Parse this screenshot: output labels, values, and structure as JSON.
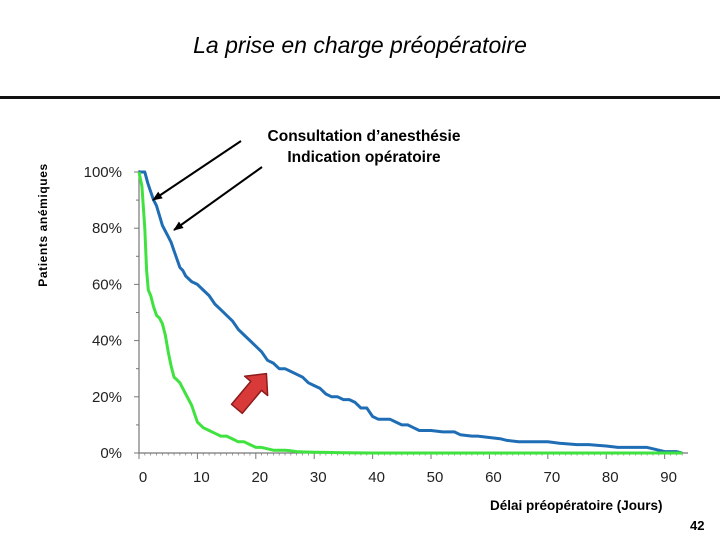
{
  "page": {
    "title": "La prise en charge préopératoire",
    "page_number": "42"
  },
  "colors": {
    "series_blue": "#1f6eb5",
    "series_green": "#3fe23f",
    "arrow_red": "#d83a3a",
    "arrow_red_edge": "#8e1b1b",
    "axis": "#777777"
  },
  "chart_data": {
    "type": "line",
    "title": "",
    "xlabel": "Délai préopératoire (Jours)",
    "ylabel": "Patients anémiques",
    "xlim": [
      0,
      94
    ],
    "ylim": [
      0,
      100
    ],
    "x_ticks": [
      0,
      10,
      20,
      30,
      40,
      50,
      60,
      70,
      80,
      90
    ],
    "y_ticks": [
      "0%",
      "20%",
      "40%",
      "60%",
      "80%",
      "100%"
    ],
    "y_tick_values": [
      0,
      20,
      40,
      60,
      80,
      100
    ],
    "grid": false,
    "annotations": [
      "Consultation d’anesthésie",
      "Indication opératoire"
    ],
    "series": [
      {
        "x": [
          0,
          1,
          1.5,
          2,
          2.5,
          3,
          4,
          4.5,
          5,
          5.5,
          6,
          7,
          7.5,
          8,
          9,
          10,
          11,
          12,
          13,
          14,
          15,
          16,
          17,
          18,
          19,
          20,
          21,
          22,
          23,
          24,
          25,
          26,
          27,
          28,
          29,
          30,
          31,
          32,
          33,
          34,
          35,
          36,
          37,
          38,
          39,
          40,
          41,
          42,
          43,
          44,
          45,
          46,
          47,
          48,
          49,
          50,
          52,
          54,
          55,
          57,
          58,
          60,
          62,
          63,
          65,
          67,
          70,
          72,
          75,
          77,
          80,
          82,
          85,
          87,
          88,
          90,
          92,
          93
        ],
        "y": [
          100,
          100,
          96,
          93,
          90,
          88,
          81,
          79,
          77,
          75,
          72,
          66,
          65,
          63,
          61,
          60,
          58,
          56,
          53,
          51,
          49,
          47,
          44,
          42,
          40,
          38,
          36,
          33,
          32,
          30,
          30,
          29,
          28,
          27,
          25,
          24,
          23,
          21,
          20,
          20,
          19,
          19,
          18,
          16,
          16,
          13,
          12,
          12,
          12,
          11,
          10,
          10,
          9,
          8,
          8,
          8,
          7.5,
          7.5,
          6.5,
          6,
          6,
          5.5,
          5,
          4.5,
          4,
          4,
          4,
          3.5,
          3,
          3,
          2.5,
          2,
          2,
          2,
          1.5,
          0.5,
          0.5,
          0
        ]
      },
      {
        "x": [
          0,
          0.5,
          1,
          1.3,
          1.6,
          2,
          2.5,
          3,
          3.5,
          4,
          4.5,
          5,
          5.5,
          6,
          6.5,
          7,
          7.5,
          8,
          9,
          10,
          11,
          12,
          13,
          14,
          15,
          16,
          17,
          18,
          19,
          20,
          21,
          22,
          23,
          24,
          25,
          26,
          27,
          28,
          30,
          32,
          35,
          40,
          50,
          60,
          70,
          80,
          90,
          93
        ],
        "y": [
          100,
          95,
          80,
          65,
          58,
          56,
          52,
          49,
          48,
          46,
          42,
          36,
          31,
          27,
          26,
          25,
          23,
          21,
          17,
          11,
          9,
          8,
          7,
          6,
          6,
          5,
          4,
          4,
          3,
          2,
          2,
          1.5,
          1,
          1,
          1,
          0.8,
          0.5,
          0.4,
          0.3,
          0.2,
          0.1,
          0,
          0,
          0,
          0,
          0,
          0,
          0
        ]
      }
    ]
  }
}
